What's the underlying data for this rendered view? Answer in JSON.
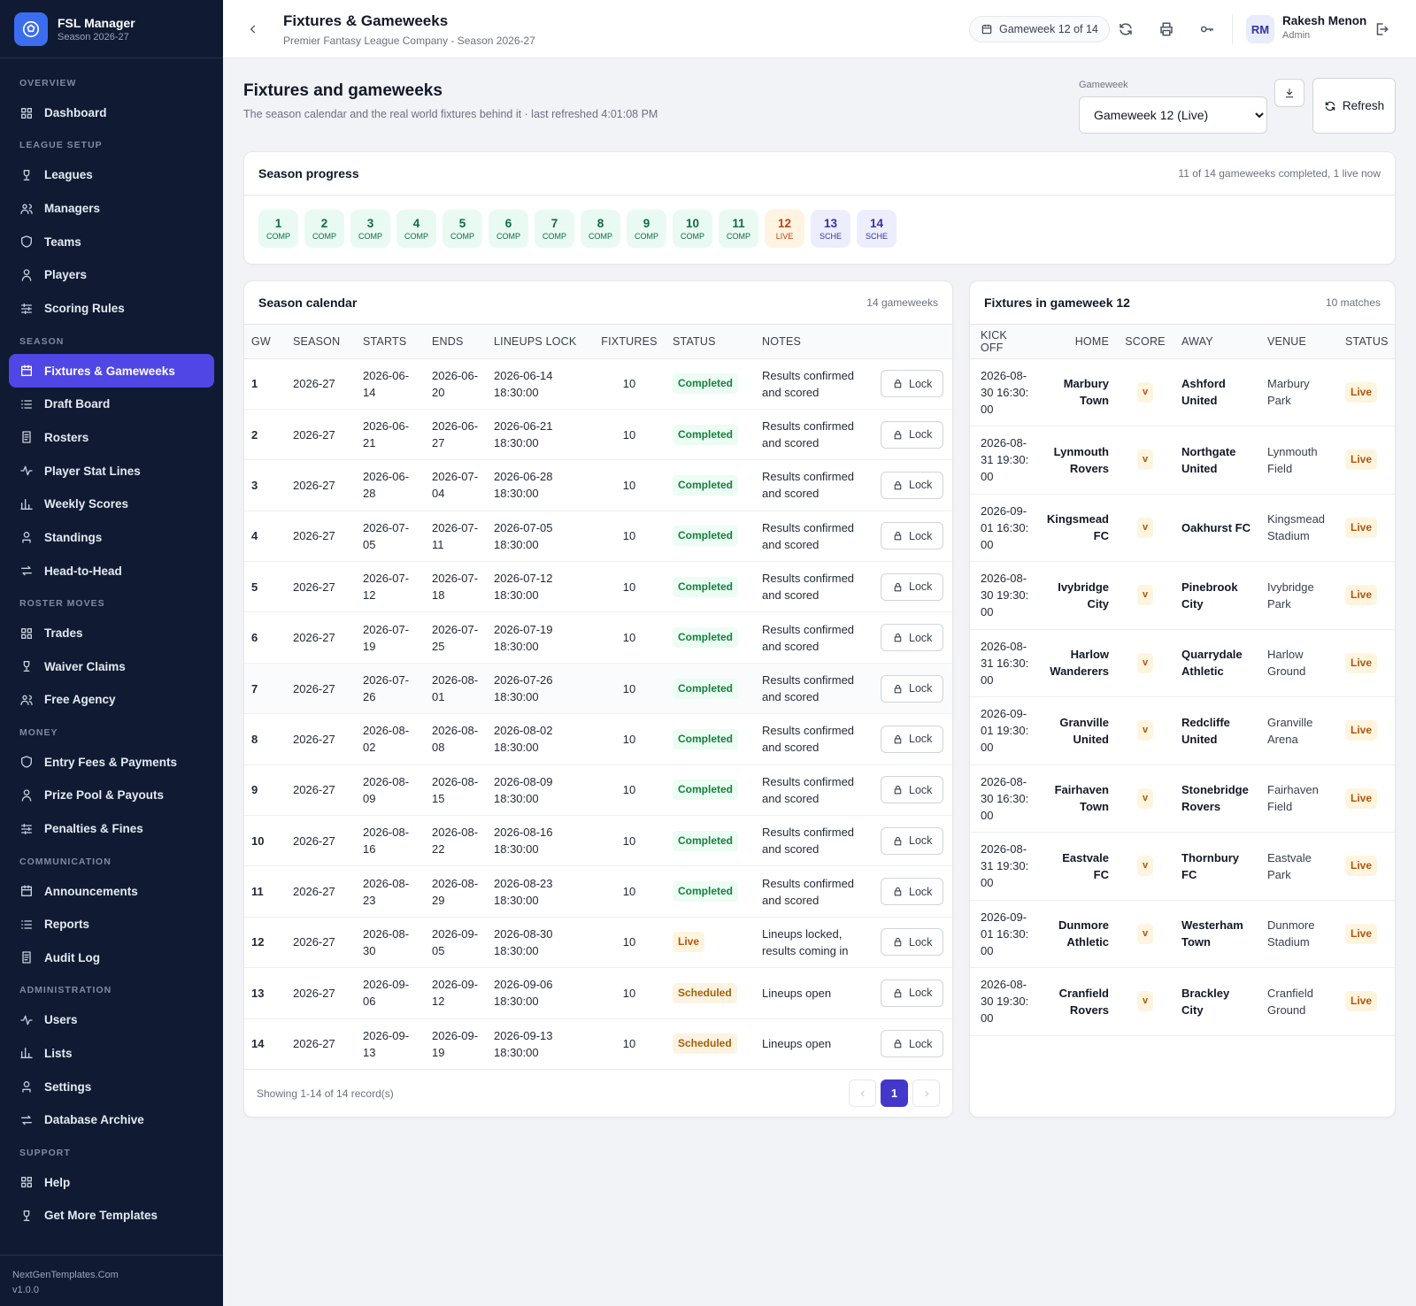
{
  "sidebar": {
    "brand": {
      "name": "FSL Manager",
      "subtitle": "Season 2026-27"
    },
    "sections": [
      {
        "title": "OVERVIEW",
        "items": [
          {
            "label": "Dashboard"
          }
        ]
      },
      {
        "title": "LEAGUE SETUP",
        "items": [
          {
            "label": "Leagues"
          },
          {
            "label": "Managers"
          },
          {
            "label": "Teams"
          },
          {
            "label": "Players"
          },
          {
            "label": "Scoring Rules"
          }
        ]
      },
      {
        "title": "SEASON",
        "items": [
          {
            "label": "Fixtures & Gameweeks",
            "active": true
          },
          {
            "label": "Draft Board"
          },
          {
            "label": "Rosters"
          },
          {
            "label": "Player Stat Lines"
          },
          {
            "label": "Weekly Scores"
          },
          {
            "label": "Standings"
          },
          {
            "label": "Head-to-Head"
          }
        ]
      },
      {
        "title": "ROSTER MOVES",
        "items": [
          {
            "label": "Trades"
          },
          {
            "label": "Waiver Claims"
          },
          {
            "label": "Free Agency"
          }
        ]
      },
      {
        "title": "MONEY",
        "items": [
          {
            "label": "Entry Fees & Payments"
          },
          {
            "label": "Prize Pool & Payouts"
          },
          {
            "label": "Penalties & Fines"
          }
        ]
      },
      {
        "title": "COMMUNICATION",
        "items": [
          {
            "label": "Announcements"
          },
          {
            "label": "Reports"
          },
          {
            "label": "Audit Log"
          }
        ]
      },
      {
        "title": "ADMINISTRATION",
        "items": [
          {
            "label": "Users"
          },
          {
            "label": "Lists"
          },
          {
            "label": "Settings"
          },
          {
            "label": "Database Archive"
          }
        ]
      },
      {
        "title": "SUPPORT",
        "items": [
          {
            "label": "Help"
          },
          {
            "label": "Get More Templates"
          }
        ]
      }
    ],
    "footer": [
      "NextGenTemplates.Com",
      "v1.0.0"
    ]
  },
  "topbar": {
    "title": "Fixtures & Gameweeks",
    "subtitle": "Premier Fantasy League Company - Season 2026-27",
    "gameweek_badge": "Gameweek 12 of 14",
    "user": {
      "initials": "RM",
      "name": "Rakesh Menon",
      "role": "Admin"
    }
  },
  "page": {
    "title": "Fixtures and gameweeks",
    "subtitle": "The season calendar and the real world fixtures behind it · last refreshed 4:01:08 PM",
    "gameweek_label": "Gameweek",
    "gameweek_select": "Gameweek 12 (Live)",
    "refresh": "Refresh"
  },
  "progress": {
    "title": "Season progress",
    "summary": "11 of 14 gameweeks completed, 1 live now",
    "items": [
      {
        "number": 1,
        "status": "COMP"
      },
      {
        "number": 2,
        "status": "COMP"
      },
      {
        "number": 3,
        "status": "COMP"
      },
      {
        "number": 4,
        "status": "COMP"
      },
      {
        "number": 5,
        "status": "COMP"
      },
      {
        "number": 6,
        "status": "COMP"
      },
      {
        "number": 7,
        "status": "COMP"
      },
      {
        "number": 8,
        "status": "COMP"
      },
      {
        "number": 9,
        "status": "COMP"
      },
      {
        "number": 10,
        "status": "COMP"
      },
      {
        "number": 11,
        "status": "COMP"
      },
      {
        "number": 12,
        "status": "LIVE"
      },
      {
        "number": 13,
        "status": "SCHE"
      },
      {
        "number": 14,
        "status": "SCHE"
      }
    ]
  },
  "calendar": {
    "title": "Season calendar",
    "count": "14 gameweeks",
    "columns": [
      "GW",
      "SEASON",
      "STARTS",
      "ENDS",
      "LINEUPS LOCK",
      "FIXTURES",
      "STATUS",
      "NOTES"
    ],
    "rows": [
      [
        1,
        "2026-27",
        "2026-06-14",
        "2026-06-20",
        "2026-06-14 18:30:00",
        10,
        "Completed",
        "Results confirmed and scored",
        "Lock"
      ],
      [
        2,
        "2026-27",
        "2026-06-21",
        "2026-06-27",
        "2026-06-21 18:30:00",
        10,
        "Completed",
        "Results confirmed and scored",
        "Lock"
      ],
      [
        3,
        "2026-27",
        "2026-06-28",
        "2026-07-04",
        "2026-06-28 18:30:00",
        10,
        "Completed",
        "Results confirmed and scored",
        "Lock"
      ],
      [
        4,
        "2026-27",
        "2026-07-05",
        "2026-07-11",
        "2026-07-05 18:30:00",
        10,
        "Completed",
        "Results confirmed and scored",
        "Lock"
      ],
      [
        5,
        "2026-27",
        "2026-07-12",
        "2026-07-18",
        "2026-07-12 18:30:00",
        10,
        "Completed",
        "Results confirmed and scored",
        "Lock"
      ],
      [
        6,
        "2026-27",
        "2026-07-19",
        "2026-07-25",
        "2026-07-19 18:30:00",
        10,
        "Completed",
        "Results confirmed and scored",
        "Lock"
      ],
      [
        7,
        "2026-27",
        "2026-07-26",
        "2026-08-01",
        "2026-07-26 18:30:00",
        10,
        "Completed",
        "Results confirmed and scored",
        "Lock"
      ],
      [
        8,
        "2026-27",
        "2026-08-02",
        "2026-08-08",
        "2026-08-02 18:30:00",
        10,
        "Completed",
        "Results confirmed and scored",
        "Lock"
      ],
      [
        9,
        "2026-27",
        "2026-08-09",
        "2026-08-15",
        "2026-08-09 18:30:00",
        10,
        "Completed",
        "Results confirmed and scored",
        "Lock"
      ],
      [
        10,
        "2026-27",
        "2026-08-16",
        "2026-08-22",
        "2026-08-16 18:30:00",
        10,
        "Completed",
        "Results confirmed and scored",
        "Lock"
      ],
      [
        11,
        "2026-27",
        "2026-08-23",
        "2026-08-29",
        "2026-08-23 18:30:00",
        10,
        "Completed",
        "Results confirmed and scored",
        "Lock"
      ],
      [
        12,
        "2026-27",
        "2026-08-30",
        "2026-09-05",
        "2026-08-30 18:30:00",
        10,
        "Live",
        "Lineups locked, results coming in",
        "Lock"
      ],
      [
        13,
        "2026-27",
        "2026-09-06",
        "2026-09-12",
        "2026-09-06 18:30:00",
        10,
        "Scheduled",
        "Lineups open",
        "Lock"
      ],
      [
        14,
        "2026-27",
        "2026-09-13",
        "2026-09-19",
        "2026-09-13 18:30:00",
        10,
        "Scheduled",
        "Lineups open",
        "Lock"
      ]
    ],
    "footer": "Showing 1-14 of 14 record(s)",
    "page": 1
  },
  "fixtures": {
    "title": "Fixtures in gameweek 12",
    "count": "10 matches",
    "columns": [
      "KICK OFF",
      "HOME",
      "SCORE",
      "AWAY",
      "VENUE",
      "STATUS"
    ],
    "rows": [
      [
        "2026-08-30 16:30:00",
        "Marbury Town",
        "v",
        "Ashford United",
        "Marbury Park",
        "Live"
      ],
      [
        "2026-08-31 19:30:00",
        "Lynmouth Rovers",
        "v",
        "Northgate United",
        "Lynmouth Field",
        "Live"
      ],
      [
        "2026-09-01 16:30:00",
        "Kingsmead FC",
        "v",
        "Oakhurst FC",
        "Kingsmead Stadium",
        "Live"
      ],
      [
        "2026-08-30 19:30:00",
        "Ivybridge City",
        "v",
        "Pinebrook City",
        "Ivybridge Park",
        "Live"
      ],
      [
        "2026-08-31 16:30:00",
        "Harlow Wanderers",
        "v",
        "Quarrydale Athletic",
        "Harlow Ground",
        "Live"
      ],
      [
        "2026-09-01 19:30:00",
        "Granville United",
        "v",
        "Redcliffe United",
        "Granville Arena",
        "Live"
      ],
      [
        "2026-08-30 16:30:00",
        "Fairhaven Town",
        "v",
        "Stonebridge Rovers",
        "Fairhaven Field",
        "Live"
      ],
      [
        "2026-08-31 19:30:00",
        "Eastvale FC",
        "v",
        "Thornbury FC",
        "Eastvale Park",
        "Live"
      ],
      [
        "2026-09-01 16:30:00",
        "Dunmore Athletic",
        "v",
        "Westerham Town",
        "Dunmore Stadium",
        "Live"
      ],
      [
        "2026-08-30 19:30:00",
        "Cranfield Rovers",
        "v",
        "Brackley City",
        "Cranfield Ground",
        "Live"
      ]
    ]
  }
}
